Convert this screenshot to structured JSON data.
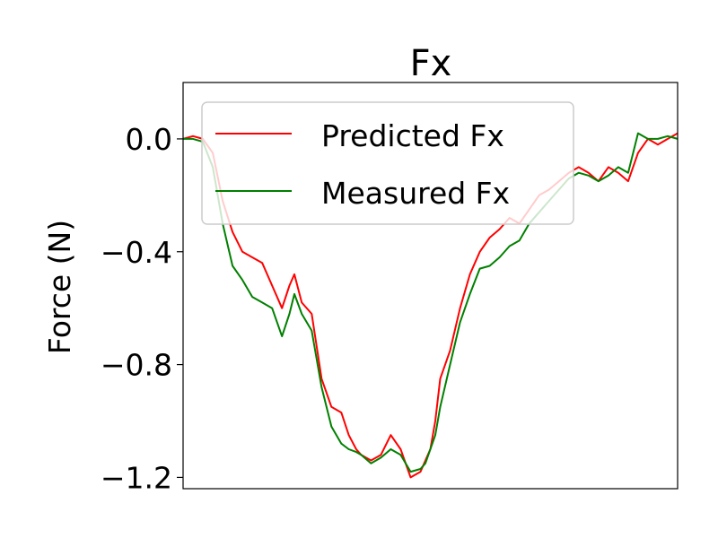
{
  "chart_data": {
    "type": "line",
    "title": "Fx",
    "xlabel": "",
    "ylabel": "Force (N)",
    "ylim": [
      -1.24,
      0.2
    ],
    "xlim": [
      0,
      1
    ],
    "yticks": [
      0.0,
      -0.4,
      -0.8,
      -1.2
    ],
    "ytick_labels": [
      "0.0",
      "−0.4",
      "−0.8",
      "−1.2"
    ],
    "grid": false,
    "legend_position": "upper-left",
    "series": [
      {
        "name": "Predicted Fx",
        "color": "#ff0000",
        "x": [
          0.0,
          0.02,
          0.04,
          0.06,
          0.08,
          0.1,
          0.12,
          0.14,
          0.16,
          0.18,
          0.2,
          0.215,
          0.225,
          0.24,
          0.26,
          0.28,
          0.3,
          0.32,
          0.335,
          0.35,
          0.36,
          0.38,
          0.4,
          0.42,
          0.44,
          0.46,
          0.48,
          0.49,
          0.5,
          0.51,
          0.52,
          0.54,
          0.56,
          0.58,
          0.6,
          0.62,
          0.64,
          0.66,
          0.68,
          0.7,
          0.72,
          0.74,
          0.76,
          0.78,
          0.8,
          0.82,
          0.84,
          0.86,
          0.88,
          0.9,
          0.92,
          0.94,
          0.96,
          0.98,
          1.0
        ],
        "values": [
          0.0,
          0.01,
          0.0,
          -0.05,
          -0.22,
          -0.33,
          -0.4,
          -0.42,
          -0.44,
          -0.52,
          -0.6,
          -0.52,
          -0.48,
          -0.58,
          -0.62,
          -0.85,
          -0.95,
          -0.97,
          -1.05,
          -1.1,
          -1.12,
          -1.14,
          -1.12,
          -1.05,
          -1.1,
          -1.2,
          -1.18,
          -1.14,
          -1.1,
          -1.0,
          -0.85,
          -0.75,
          -0.6,
          -0.48,
          -0.4,
          -0.35,
          -0.32,
          -0.28,
          -0.3,
          -0.25,
          -0.2,
          -0.18,
          -0.15,
          -0.12,
          -0.1,
          -0.12,
          -0.15,
          -0.1,
          -0.12,
          -0.15,
          -0.05,
          0.0,
          -0.02,
          0.0,
          0.02
        ]
      },
      {
        "name": "Measured Fx",
        "color": "#008000",
        "x": [
          0.0,
          0.02,
          0.04,
          0.06,
          0.08,
          0.1,
          0.12,
          0.14,
          0.16,
          0.18,
          0.2,
          0.215,
          0.225,
          0.24,
          0.26,
          0.28,
          0.3,
          0.32,
          0.335,
          0.35,
          0.36,
          0.38,
          0.4,
          0.42,
          0.44,
          0.46,
          0.48,
          0.49,
          0.5,
          0.51,
          0.52,
          0.54,
          0.56,
          0.58,
          0.6,
          0.62,
          0.64,
          0.66,
          0.68,
          0.7,
          0.72,
          0.74,
          0.76,
          0.78,
          0.8,
          0.82,
          0.84,
          0.86,
          0.88,
          0.9,
          0.92,
          0.94,
          0.96,
          0.98,
          1.0
        ],
        "values": [
          0.0,
          0.0,
          -0.01,
          -0.1,
          -0.3,
          -0.45,
          -0.5,
          -0.56,
          -0.58,
          -0.6,
          -0.7,
          -0.62,
          -0.55,
          -0.62,
          -0.68,
          -0.88,
          -1.02,
          -1.08,
          -1.1,
          -1.11,
          -1.12,
          -1.15,
          -1.13,
          -1.1,
          -1.12,
          -1.18,
          -1.17,
          -1.15,
          -1.1,
          -1.05,
          -0.95,
          -0.8,
          -0.65,
          -0.55,
          -0.46,
          -0.45,
          -0.42,
          -0.38,
          -0.36,
          -0.3,
          -0.26,
          -0.22,
          -0.18,
          -0.14,
          -0.12,
          -0.13,
          -0.15,
          -0.13,
          -0.1,
          -0.12,
          0.02,
          0.0,
          0.0,
          0.01,
          0.0
        ]
      }
    ]
  }
}
